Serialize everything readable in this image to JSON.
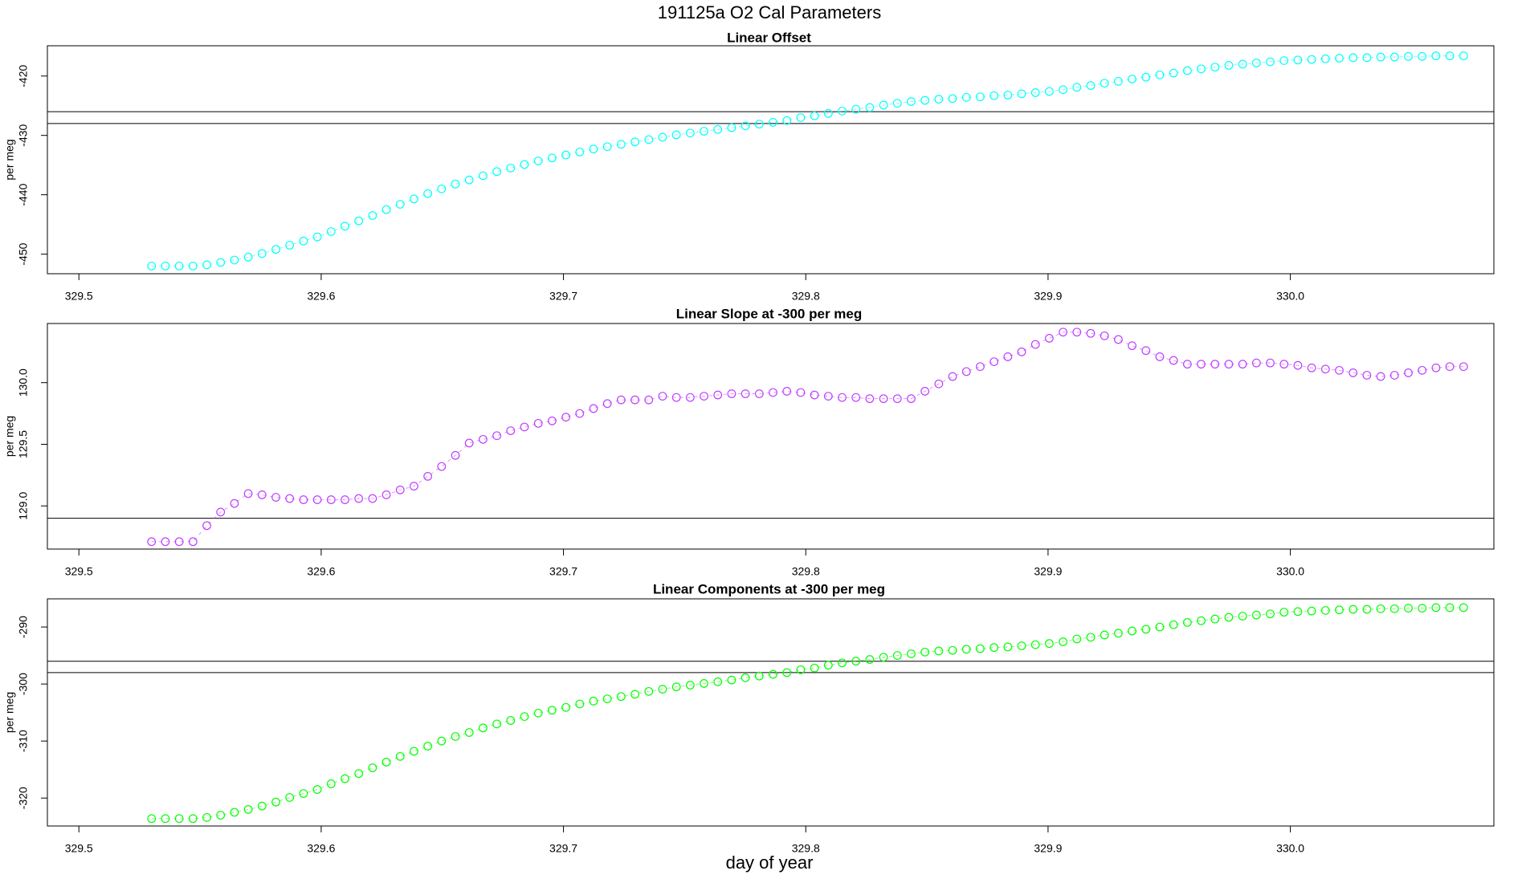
{
  "title": "191125a   O2 Cal Parameters",
  "xlabel": "day of year",
  "chart_data": [
    {
      "type": "scatter",
      "title": "Linear Offset",
      "ylabel": "per meg",
      "color": "#00ffff",
      "xlim": [
        329.487,
        330.084
      ],
      "ylim": [
        -453.3,
        -414.9
      ],
      "xticks": [
        329.5,
        329.6,
        329.7,
        329.8,
        329.9,
        {
          "value": 330,
          "label": "330.0"
        }
      ],
      "yticks": [
        -450,
        -440,
        -430,
        -420
      ],
      "hlines": [
        -426,
        -428
      ],
      "x": [
        329.53,
        329.5357,
        329.5414,
        329.5471,
        329.5528,
        329.5585,
        329.5642,
        329.5699,
        329.5756,
        329.5813,
        329.587,
        329.5927,
        329.5984,
        329.6041,
        329.6098,
        329.6155,
        329.6212,
        329.6269,
        329.6326,
        329.6383,
        329.644,
        329.6497,
        329.6554,
        329.6611,
        329.6668,
        329.6725,
        329.6782,
        329.6839,
        329.6896,
        329.6953,
        329.701,
        329.7067,
        329.7124,
        329.7181,
        329.7238,
        329.7295,
        329.7352,
        329.7409,
        329.7466,
        329.7523,
        329.758,
        329.7637,
        329.7694,
        329.7751,
        329.7808,
        329.7865,
        329.7922,
        329.7979,
        329.8036,
        329.8093,
        329.815,
        329.8207,
        329.8264,
        329.8321,
        329.8378,
        329.8435,
        329.8492,
        329.8549,
        329.8606,
        329.8663,
        329.872,
        329.8777,
        329.8834,
        329.8891,
        329.8948,
        329.9005,
        329.9062,
        329.9119,
        329.9176,
        329.9233,
        329.929,
        329.9347,
        329.9404,
        329.9461,
        329.9518,
        329.9575,
        329.9632,
        329.9689,
        329.9746,
        329.9803,
        329.986,
        329.9917,
        329.9974,
        330.0031,
        330.0088,
        330.0145,
        330.0202,
        330.0259,
        330.0316,
        330.0373,
        330.043,
        330.0487,
        330.0544,
        330.0601,
        330.0658,
        330.0715
      ],
      "values": [
        -452.0,
        -452.0,
        -452.0,
        -452.0,
        -451.8,
        -451.4,
        -451.0,
        -450.5,
        -449.9,
        -449.2,
        -448.5,
        -447.8,
        -447.1,
        -446.2,
        -445.3,
        -444.4,
        -443.5,
        -442.5,
        -441.6,
        -440.7,
        -439.8,
        -439.0,
        -438.2,
        -437.5,
        -436.8,
        -436.1,
        -435.5,
        -434.9,
        -434.3,
        -433.8,
        -433.3,
        -432.8,
        -432.3,
        -431.9,
        -431.5,
        -431.1,
        -430.7,
        -430.3,
        -429.9,
        -429.6,
        -429.3,
        -429.0,
        -428.7,
        -428.4,
        -428.1,
        -427.8,
        -427.5,
        -427.0,
        -426.7,
        -426.3,
        -425.9,
        -425.6,
        -425.3,
        -424.9,
        -424.6,
        -424.3,
        -424.1,
        -423.9,
        -423.8,
        -423.6,
        -423.5,
        -423.3,
        -423.2,
        -423.0,
        -422.8,
        -422.6,
        -422.3,
        -421.9,
        -421.6,
        -421.2,
        -420.9,
        -420.5,
        -420.2,
        -419.8,
        -419.5,
        -419.1,
        -418.8,
        -418.5,
        -418.2,
        -418.0,
        -417.8,
        -417.6,
        -417.4,
        -417.3,
        -417.2,
        -417.1,
        -417.0,
        -416.9,
        -416.9,
        -416.8,
        -416.8,
        -416.7,
        -416.7,
        -416.6,
        -416.6,
        -416.6
      ]
    },
    {
      "type": "scatter",
      "title": "Linear Slope at -300 per meg",
      "ylabel": "per meg",
      "color": "#bf3eff",
      "xlim": [
        329.487,
        330.084
      ],
      "ylim": [
        128.65,
        130.48
      ],
      "xticks": [
        329.5,
        329.6,
        329.7,
        329.8,
        329.9,
        {
          "value": 330,
          "label": "330.0"
        }
      ],
      "yticks": [
        {
          "value": 129,
          "label": "129.0"
        },
        129.5,
        {
          "value": 130,
          "label": "130.0"
        }
      ],
      "hlines": [
        128.9
      ],
      "x": [
        329.53,
        329.5357,
        329.5414,
        329.5471,
        329.5528,
        329.5585,
        329.5642,
        329.5699,
        329.5756,
        329.5813,
        329.587,
        329.5927,
        329.5984,
        329.6041,
        329.6098,
        329.6155,
        329.6212,
        329.6269,
        329.6326,
        329.6383,
        329.644,
        329.6497,
        329.6554,
        329.6611,
        329.6668,
        329.6725,
        329.6782,
        329.6839,
        329.6896,
        329.6953,
        329.701,
        329.7067,
        329.7124,
        329.7181,
        329.7238,
        329.7295,
        329.7352,
        329.7409,
        329.7466,
        329.7523,
        329.758,
        329.7637,
        329.7694,
        329.7751,
        329.7808,
        329.7865,
        329.7922,
        329.7979,
        329.8036,
        329.8093,
        329.815,
        329.8207,
        329.8264,
        329.8321,
        329.8378,
        329.8435,
        329.8492,
        329.8549,
        329.8606,
        329.8663,
        329.872,
        329.8777,
        329.8834,
        329.8891,
        329.8948,
        329.9005,
        329.9062,
        329.9119,
        329.9176,
        329.9233,
        329.929,
        329.9347,
        329.9404,
        329.9461,
        329.9518,
        329.9575,
        329.9632,
        329.9689,
        329.9746,
        329.9803,
        329.986,
        329.9917,
        329.9974,
        330.0031,
        330.0088,
        330.0145,
        330.0202,
        330.0259,
        330.0316,
        330.0373,
        330.043,
        330.0487,
        330.0544,
        330.0601,
        330.0658,
        330.0715
      ],
      "values": [
        128.71,
        128.71,
        128.71,
        128.71,
        128.84,
        128.95,
        129.02,
        129.1,
        129.09,
        129.07,
        129.06,
        129.05,
        129.05,
        129.05,
        129.05,
        129.06,
        129.06,
        129.09,
        129.13,
        129.16,
        129.24,
        129.32,
        129.41,
        129.51,
        129.54,
        129.57,
        129.61,
        129.64,
        129.67,
        129.69,
        129.72,
        129.75,
        129.79,
        129.83,
        129.86,
        129.86,
        129.86,
        129.89,
        129.88,
        129.88,
        129.89,
        129.9,
        129.91,
        129.91,
        129.91,
        129.92,
        129.93,
        129.92,
        129.9,
        129.89,
        129.88,
        129.88,
        129.87,
        129.87,
        129.87,
        129.87,
        129.93,
        129.99,
        130.05,
        130.09,
        130.13,
        130.17,
        130.21,
        130.25,
        130.31,
        130.36,
        130.41,
        130.41,
        130.4,
        130.38,
        130.35,
        130.3,
        130.26,
        130.21,
        130.18,
        130.15,
        130.15,
        130.15,
        130.15,
        130.15,
        130.16,
        130.16,
        130.15,
        130.14,
        130.12,
        130.11,
        130.1,
        130.08,
        130.06,
        130.05,
        130.06,
        130.08,
        130.1,
        130.12,
        130.13,
        130.13
      ]
    },
    {
      "type": "scatter",
      "title": "Linear Components at -300 per meg",
      "ylabel": "per meg",
      "color": "#00ff00",
      "xlim": [
        329.487,
        330.084
      ],
      "ylim": [
        -324.9,
        -285.06
      ],
      "xticks": [
        329.5,
        329.6,
        329.7,
        329.8,
        329.9,
        {
          "value": 330,
          "label": "330.0"
        }
      ],
      "yticks": [
        -320,
        -310,
        -300,
        -290
      ],
      "hlines": [
        -296,
        -298
      ],
      "x": [
        329.53,
        329.5357,
        329.5414,
        329.5471,
        329.5528,
        329.5585,
        329.5642,
        329.5699,
        329.5756,
        329.5813,
        329.587,
        329.5927,
        329.5984,
        329.6041,
        329.6098,
        329.6155,
        329.6212,
        329.6269,
        329.6326,
        329.6383,
        329.644,
        329.6497,
        329.6554,
        329.6611,
        329.6668,
        329.6725,
        329.6782,
        329.6839,
        329.6896,
        329.6953,
        329.701,
        329.7067,
        329.7124,
        329.7181,
        329.7238,
        329.7295,
        329.7352,
        329.7409,
        329.7466,
        329.7523,
        329.758,
        329.7637,
        329.7694,
        329.7751,
        329.7808,
        329.7865,
        329.7922,
        329.7979,
        329.8036,
        329.8093,
        329.815,
        329.8207,
        329.8264,
        329.8321,
        329.8378,
        329.8435,
        329.8492,
        329.8549,
        329.8606,
        329.8663,
        329.872,
        329.8777,
        329.8834,
        329.8891,
        329.8948,
        329.9005,
        329.9062,
        329.9119,
        329.9176,
        329.9233,
        329.929,
        329.9347,
        329.9404,
        329.9461,
        329.9518,
        329.9575,
        329.9632,
        329.9689,
        329.9746,
        329.9803,
        329.986,
        329.9917,
        329.9974,
        330.0031,
        330.0088,
        330.0145,
        330.0202,
        330.0259,
        330.0316,
        330.0373,
        330.043,
        330.0487,
        330.0544,
        330.0601,
        330.0658,
        330.0715
      ],
      "values": [
        -323.6,
        -323.6,
        -323.6,
        -323.6,
        -323.4,
        -323.0,
        -322.5,
        -322.0,
        -321.4,
        -320.7,
        -319.9,
        -319.2,
        -318.5,
        -317.5,
        -316.6,
        -315.7,
        -314.7,
        -313.7,
        -312.7,
        -311.8,
        -310.9,
        -310.0,
        -309.2,
        -308.5,
        -307.7,
        -307.0,
        -306.4,
        -305.7,
        -305.1,
        -304.6,
        -304.1,
        -303.5,
        -303.0,
        -302.6,
        -302.2,
        -301.8,
        -301.3,
        -300.9,
        -300.5,
        -300.2,
        -299.9,
        -299.6,
        -299.3,
        -298.9,
        -298.6,
        -298.3,
        -298.0,
        -297.5,
        -297.2,
        -296.7,
        -296.3,
        -296.0,
        -295.7,
        -295.3,
        -295.0,
        -294.7,
        -294.4,
        -294.2,
        -294.1,
        -293.9,
        -293.8,
        -293.6,
        -293.5,
        -293.3,
        -293.1,
        -292.9,
        -292.6,
        -292.1,
        -291.8,
        -291.4,
        -291.1,
        -290.7,
        -290.4,
        -290.0,
        -289.6,
        -289.2,
        -288.9,
        -288.6,
        -288.3,
        -288.1,
        -287.9,
        -287.7,
        -287.4,
        -287.3,
        -287.2,
        -287.1,
        -287.0,
        -286.9,
        -286.9,
        -286.8,
        -286.8,
        -286.7,
        -286.7,
        -286.6,
        -286.6,
        -286.6
      ]
    }
  ]
}
